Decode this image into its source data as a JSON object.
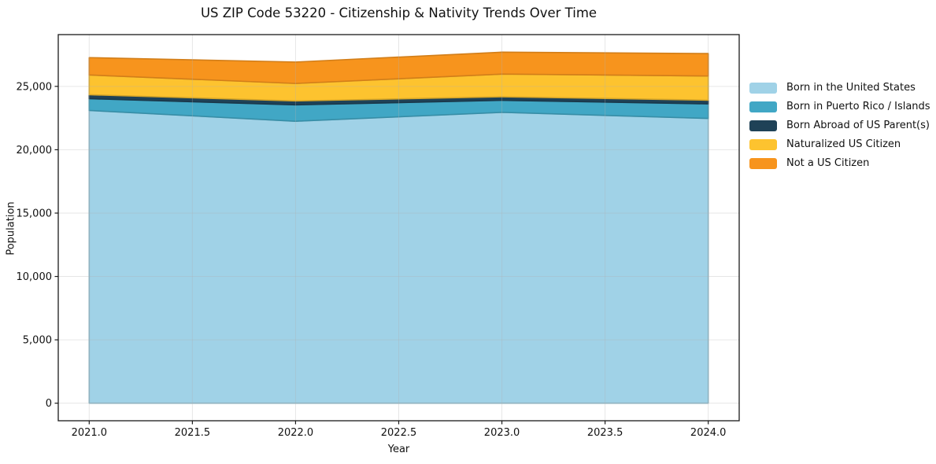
{
  "chart_data": {
    "type": "area",
    "stacked": true,
    "title": "US ZIP Code 53220 - Citizenship & Nativity Trends Over Time",
    "xlabel": "Year",
    "ylabel": "Population",
    "x": [
      2021,
      2022,
      2023,
      2024
    ],
    "series": [
      {
        "name": "Born in the United States",
        "color": "#A0D2E7",
        "values": [
          23100,
          22250,
          22950,
          22470
        ]
      },
      {
        "name": "Born in Puerto Rico / Islands",
        "color": "#41A7C5",
        "values": [
          930,
          1290,
          950,
          1150
        ]
      },
      {
        "name": "Born Abroad of US Parent(s)",
        "color": "#1F4257",
        "values": [
          310,
          310,
          280,
          290
        ]
      },
      {
        "name": "Naturalized US Citizen",
        "color": "#FDC32F",
        "values": [
          1560,
          1380,
          1790,
          1910
        ]
      },
      {
        "name": "Not a US Citizen",
        "color": "#F7941D",
        "values": [
          1370,
          1690,
          1730,
          1770
        ]
      }
    ],
    "totals": [
      27270,
      26920,
      27700,
      27590
    ],
    "x_tick_values": [
      2021,
      2021.5,
      2022,
      2022.5,
      2023,
      2023.5,
      2024
    ],
    "x_ticks": [
      "2021.0",
      "2021.5",
      "2022.0",
      "2022.5",
      "2023.0",
      "2023.5",
      "2024.0"
    ],
    "y_tick_values": [
      0,
      5000,
      10000,
      15000,
      20000,
      25000
    ],
    "y_ticks": [
      "0",
      "5,000",
      "10,000",
      "15,000",
      "20,000",
      "25,000"
    ],
    "xlim": [
      2020.85,
      2024.15
    ],
    "ylim": [
      -1385,
      29085
    ],
    "grid": true,
    "grid_color": "#b0b0b0",
    "grid_alpha": 0.32,
    "frame_color": "#1a1a1a",
    "legend_position": "right"
  }
}
